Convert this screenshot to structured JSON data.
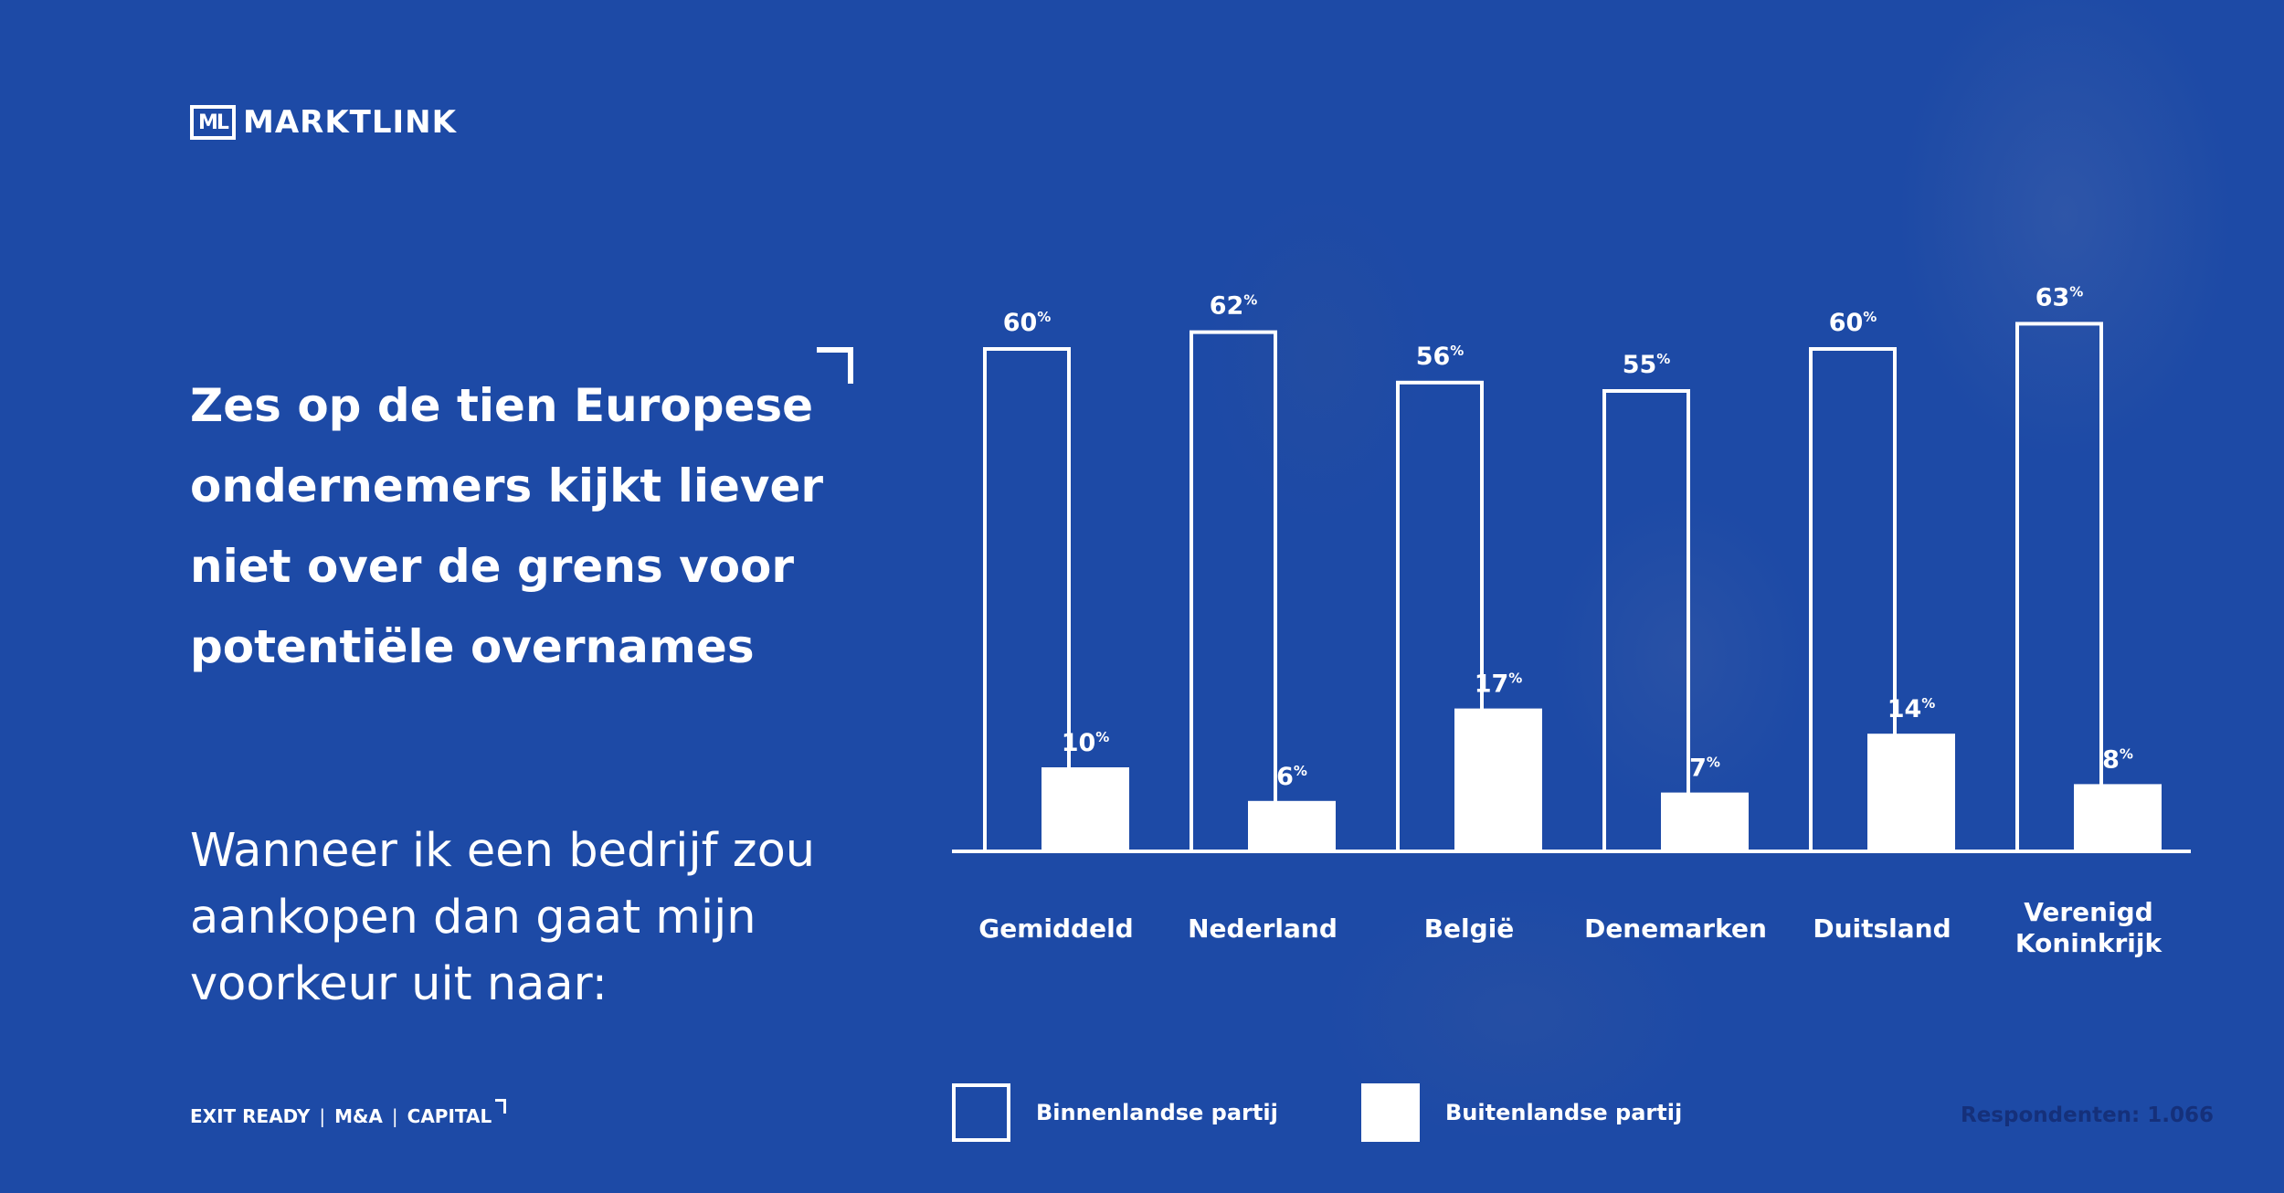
{
  "brand": {
    "logo_mark": "ML",
    "name": "MARKTLINK"
  },
  "headline": "Zes op de tien Europese ondernemers kijkt liever niet over de grens voor potentiële overnames",
  "question": "Wanneer ik een bedrijf zou aankopen dan gaat mijn voorkeur uit naar:",
  "footer": {
    "items": [
      "EXIT READY",
      "M&A",
      "CAPITAL"
    ],
    "separator": "|"
  },
  "respondents": "Respondenten: 1.066",
  "colors": {
    "background": "#1d4aa6",
    "bars": "#ffffff",
    "respondents_text": "#15307a"
  },
  "chart_data": {
    "type": "bar",
    "categories": [
      [
        "Gemiddeld"
      ],
      [
        "Nederland"
      ],
      [
        "België"
      ],
      [
        "Denemarken"
      ],
      [
        "Duitsland"
      ],
      [
        "Verenigd",
        "Koninkrijk"
      ]
    ],
    "series": [
      {
        "name": "Binnenlandse partij",
        "style": "outline",
        "values": [
          60,
          62,
          56,
          55,
          60,
          63
        ]
      },
      {
        "name": "Buitenlandse partij",
        "style": "filled",
        "values": [
          10,
          6,
          17,
          7,
          14,
          8
        ]
      }
    ],
    "value_suffix": "%",
    "ylim": [
      0,
      63
    ],
    "grid": false,
    "legend_position": "bottom"
  }
}
